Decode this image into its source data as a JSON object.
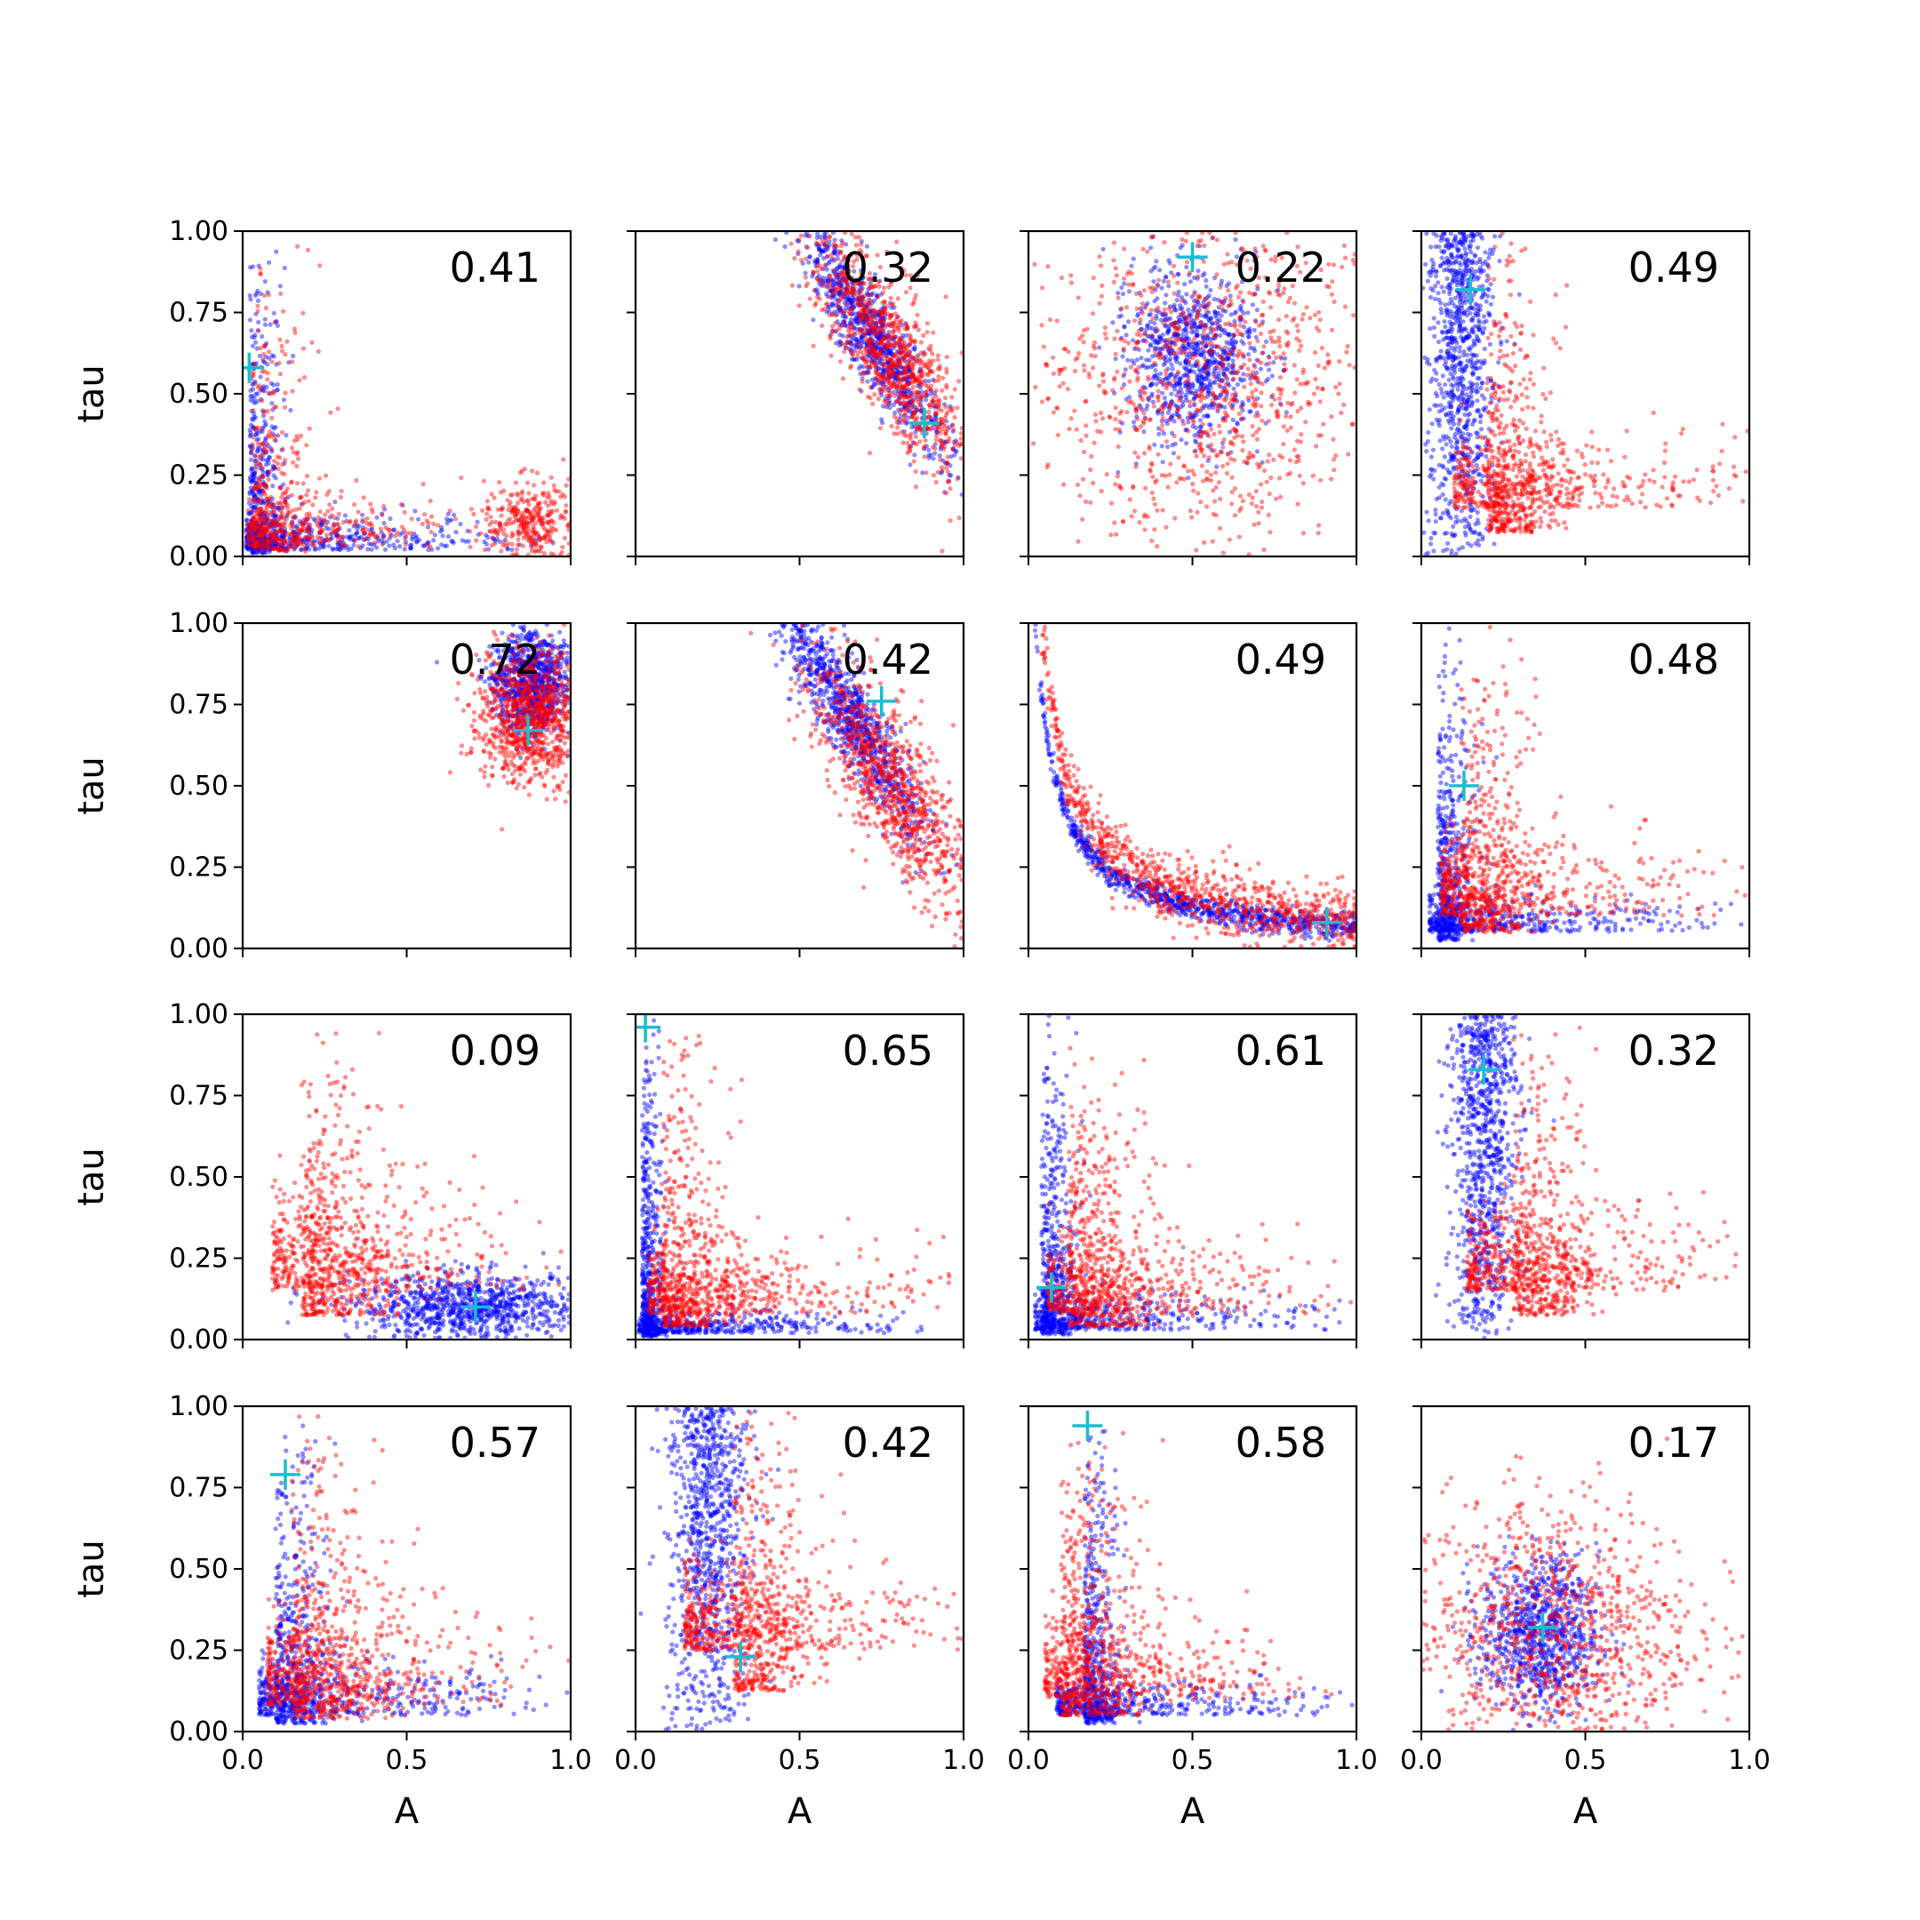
{
  "chart_data": {
    "type": "scatter",
    "layout": "4x4 grid of subplots, shared axes",
    "xlabel": "A",
    "ylabel": "tau",
    "xlim": [
      0.0,
      1.0
    ],
    "ylim": [
      0.0,
      1.0
    ],
    "xticks": [
      "0.0",
      "0.5",
      "1.0"
    ],
    "yticks": [
      "0.00",
      "0.25",
      "0.50",
      "0.75",
      "1.00"
    ],
    "grid": false,
    "colors": {
      "series_a": "#0000ff",
      "series_b": "#ff0000",
      "marker": "#17becf"
    },
    "marker": "+",
    "panels": [
      {
        "annotation": "0.41",
        "marker_xy": [
          0.02,
          0.58
        ],
        "blue": {
          "shape": "L",
          "corner": [
            0.02,
            0.02
          ],
          "spread": 0.05
        },
        "red": {
          "shape": "L+cluster",
          "corner": [
            0.03,
            0.03
          ],
          "cluster": [
            0.88,
            0.1
          ]
        }
      },
      {
        "annotation": "0.32",
        "marker_xy": [
          0.88,
          0.41
        ],
        "blue": {
          "shape": "arc",
          "center": [
            0.72,
            0.68
          ],
          "spread": 0.07
        },
        "red": {
          "shape": "arc",
          "center": [
            0.78,
            0.62
          ],
          "spread": 0.1
        }
      },
      {
        "annotation": "0.22",
        "marker_xy": [
          0.5,
          0.92
        ],
        "blue": {
          "shape": "blob",
          "center": [
            0.5,
            0.62
          ],
          "spread": 0.1
        },
        "red": {
          "shape": "diffuse",
          "center": [
            0.55,
            0.55
          ],
          "spread": 0.25
        }
      },
      {
        "annotation": "0.49",
        "marker_xy": [
          0.15,
          0.82
        ],
        "blue": {
          "shape": "vertical",
          "center": [
            0.12,
            0.55
          ],
          "spread": 0.05
        },
        "red": {
          "shape": "L",
          "corner": [
            0.2,
            0.15
          ],
          "spread": 0.1
        }
      },
      {
        "annotation": "0.72",
        "marker_xy": [
          0.87,
          0.67
        ],
        "blue": {
          "shape": "blob",
          "center": [
            0.88,
            0.82
          ],
          "spread": 0.06
        },
        "red": {
          "shape": "blob",
          "center": [
            0.88,
            0.72
          ],
          "spread": 0.08
        }
      },
      {
        "annotation": "0.42",
        "marker_xy": [
          0.75,
          0.76
        ],
        "blue": {
          "shape": "arc",
          "center": [
            0.65,
            0.72
          ],
          "spread": 0.07
        },
        "red": {
          "shape": "arc",
          "center": [
            0.78,
            0.5
          ],
          "spread": 0.11
        }
      },
      {
        "annotation": "0.49",
        "marker_xy": [
          0.91,
          0.08
        ],
        "blue": {
          "shape": "hyperbola",
          "k": 0.07,
          "spread": 0.04
        },
        "red": {
          "shape": "hyperbola",
          "k": 0.09,
          "spread": 0.1
        }
      },
      {
        "annotation": "0.48",
        "marker_xy": [
          0.13,
          0.5
        ],
        "blue": {
          "shape": "L",
          "corner": [
            0.05,
            0.05
          ],
          "spread": 0.05
        },
        "red": {
          "shape": "L",
          "corner": [
            0.12,
            0.1
          ],
          "spread": 0.12
        }
      },
      {
        "annotation": "0.09",
        "marker_xy": [
          0.71,
          0.1
        ],
        "blue": {
          "shape": "horizontal",
          "center": [
            0.7,
            0.1
          ],
          "spread": 0.05
        },
        "red": {
          "shape": "L",
          "corner": [
            0.18,
            0.15
          ],
          "spread": 0.15
        }
      },
      {
        "annotation": "0.65",
        "marker_xy": [
          0.03,
          0.96
        ],
        "blue": {
          "shape": "L",
          "corner": [
            0.02,
            0.02
          ],
          "spread": 0.03
        },
        "red": {
          "shape": "L",
          "corner": [
            0.08,
            0.08
          ],
          "spread": 0.1
        }
      },
      {
        "annotation": "0.61",
        "marker_xy": [
          0.07,
          0.16
        ],
        "blue": {
          "shape": "L",
          "corner": [
            0.04,
            0.03
          ],
          "spread": 0.05
        },
        "red": {
          "shape": "L",
          "corner": [
            0.12,
            0.08
          ],
          "spread": 0.12
        }
      },
      {
        "annotation": "0.32",
        "marker_xy": [
          0.19,
          0.83
        ],
        "blue": {
          "shape": "vertical",
          "center": [
            0.19,
            0.75
          ],
          "spread": 0.05
        },
        "red": {
          "shape": "L",
          "corner": [
            0.28,
            0.15
          ],
          "spread": 0.12
        }
      },
      {
        "annotation": "0.57",
        "marker_xy": [
          0.13,
          0.79
        ],
        "blue": {
          "shape": "L",
          "corner": [
            0.1,
            0.05
          ],
          "spread": 0.08
        },
        "red": {
          "shape": "L",
          "corner": [
            0.15,
            0.08
          ],
          "spread": 0.15
        }
      },
      {
        "annotation": "0.42",
        "marker_xy": [
          0.32,
          0.23
        ],
        "blue": {
          "shape": "vertical",
          "center": [
            0.22,
            0.55
          ],
          "spread": 0.06
        },
        "red": {
          "shape": "L",
          "corner": [
            0.3,
            0.25
          ],
          "spread": 0.12
        }
      },
      {
        "annotation": "0.58",
        "marker_xy": [
          0.18,
          0.94
        ],
        "blue": {
          "shape": "L",
          "corner": [
            0.17,
            0.05
          ],
          "spread": 0.05
        },
        "red": {
          "shape": "L",
          "corner": [
            0.1,
            0.1
          ],
          "spread": 0.12
        }
      },
      {
        "annotation": "0.17",
        "marker_xy": [
          0.37,
          0.32
        ],
        "blue": {
          "shape": "blob",
          "center": [
            0.36,
            0.3
          ],
          "spread": 0.09
        },
        "red": {
          "shape": "diffuse",
          "center": [
            0.4,
            0.3
          ],
          "spread": 0.22
        }
      }
    ]
  }
}
